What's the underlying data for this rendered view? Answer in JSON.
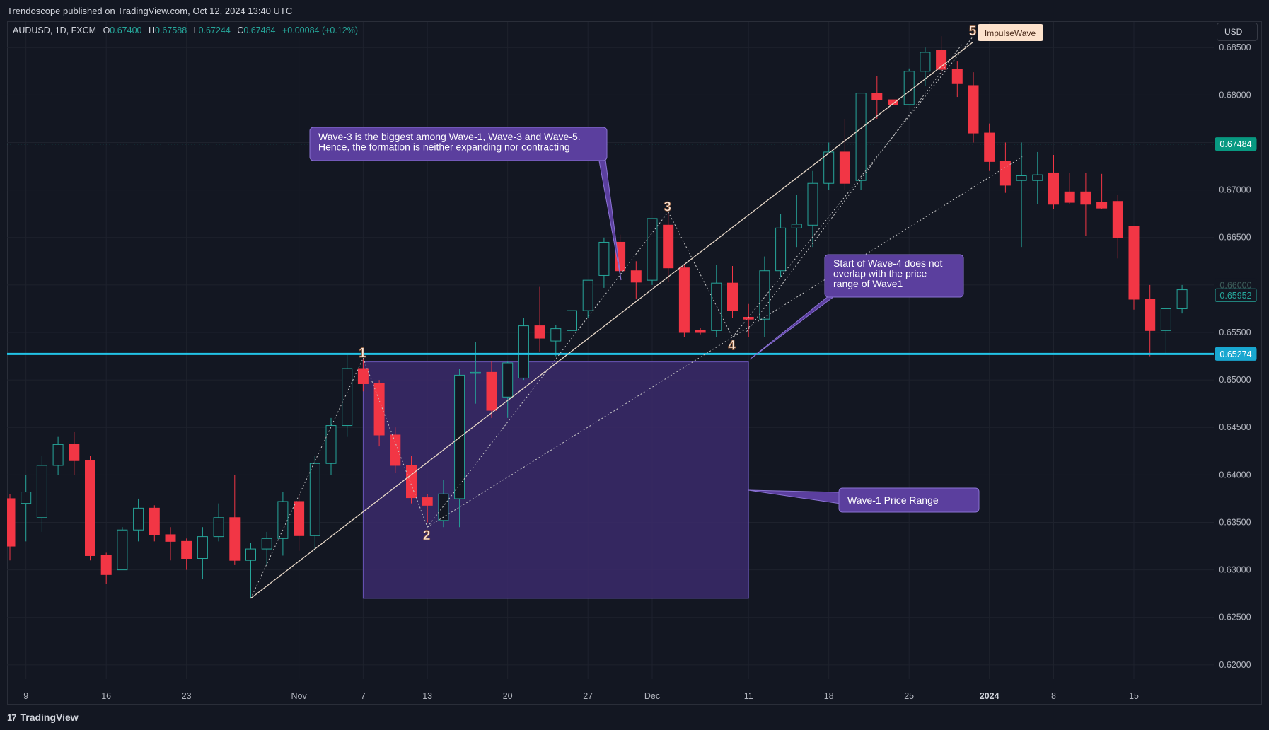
{
  "header": {
    "published": "Trendoscope published on TradingView.com, Oct 12, 2024 13:40 UTC"
  },
  "legend": {
    "symbol": "AUDUSD, 1D, FXCM",
    "o_label": "O",
    "o": "0.67400",
    "h_label": "H",
    "h": "0.67588",
    "l_label": "L",
    "l": "0.67244",
    "c_label": "C",
    "c": "0.67484",
    "change": "+0.00084 (+0.12%)"
  },
  "currency_button": "USD",
  "footer": {
    "brand": "TradingView",
    "brand_mark": "17"
  },
  "colors": {
    "background": "#131722",
    "up": "#26a69a",
    "down": "#f23645",
    "support_line": "#22c3e6",
    "current_price": "#089981",
    "annotation_bg": "#5b3f9e",
    "box_fill": "#3b2a6b"
  },
  "chart_data": {
    "type": "candlestick",
    "ylim": [
      0.6185,
      0.6877
    ],
    "yticks": [
      "0.68500",
      "0.68000",
      "0.67500",
      "0.67000",
      "0.66500",
      "0.66000",
      "0.65500",
      "0.65000",
      "0.64500",
      "0.64000",
      "0.63500",
      "0.63000",
      "0.62500",
      "0.62000"
    ],
    "xticks": [
      {
        "label": "9",
        "index": 1
      },
      {
        "label": "16",
        "index": 6
      },
      {
        "label": "23",
        "index": 11
      },
      {
        "label": "Nov",
        "index": 18
      },
      {
        "label": "7",
        "index": 22
      },
      {
        "label": "13",
        "index": 26
      },
      {
        "label": "20",
        "index": 31
      },
      {
        "label": "27",
        "index": 36
      },
      {
        "label": "Dec",
        "index": 40
      },
      {
        "label": "11",
        "index": 46
      },
      {
        "label": "18",
        "index": 51
      },
      {
        "label": "25",
        "index": 56
      },
      {
        "label": "2024",
        "index": 61
      },
      {
        "label": "8",
        "index": 65
      },
      {
        "label": "15",
        "index": 70
      }
    ],
    "candles": [
      [
        0.6375,
        0.638,
        0.631,
        0.6325
      ],
      [
        0.637,
        0.64,
        0.633,
        0.6382
      ],
      [
        0.6355,
        0.642,
        0.634,
        0.641
      ],
      [
        0.641,
        0.644,
        0.64,
        0.6432
      ],
      [
        0.6432,
        0.6445,
        0.64,
        0.6415
      ],
      [
        0.6415,
        0.642,
        0.631,
        0.6315
      ],
      [
        0.6315,
        0.6318,
        0.6285,
        0.6295
      ],
      [
        0.63,
        0.6345,
        0.63,
        0.6342
      ],
      [
        0.6342,
        0.6375,
        0.633,
        0.6365
      ],
      [
        0.6365,
        0.6368,
        0.633,
        0.6337
      ],
      [
        0.6337,
        0.6345,
        0.631,
        0.633
      ],
      [
        0.633,
        0.6333,
        0.63,
        0.6312
      ],
      [
        0.6312,
        0.6345,
        0.629,
        0.6335
      ],
      [
        0.6335,
        0.637,
        0.633,
        0.6355
      ],
      [
        0.6355,
        0.64,
        0.6305,
        0.631
      ],
      [
        0.631,
        0.6328,
        0.627,
        0.6322
      ],
      [
        0.6322,
        0.634,
        0.6305,
        0.6333
      ],
      [
        0.6333,
        0.6382,
        0.6315,
        0.6372
      ],
      [
        0.6372,
        0.638,
        0.632,
        0.6336
      ],
      [
        0.6336,
        0.642,
        0.632,
        0.6412
      ],
      [
        0.6412,
        0.646,
        0.64,
        0.6452
      ],
      [
        0.6452,
        0.6528,
        0.644,
        0.6512
      ],
      [
        0.6512,
        0.6522,
        0.6488,
        0.6496
      ],
      [
        0.6496,
        0.65,
        0.643,
        0.6442
      ],
      [
        0.6442,
        0.645,
        0.6402,
        0.641
      ],
      [
        0.641,
        0.642,
        0.637,
        0.6376
      ],
      [
        0.6376,
        0.638,
        0.635,
        0.6368
      ],
      [
        0.6352,
        0.6395,
        0.6345,
        0.638
      ],
      [
        0.6375,
        0.6512,
        0.6345,
        0.6505
      ],
      [
        0.6507,
        0.654,
        0.6475,
        0.6508
      ],
      [
        0.6508,
        0.652,
        0.646,
        0.6468
      ],
      [
        0.6482,
        0.652,
        0.646,
        0.6518
      ],
      [
        0.6502,
        0.6565,
        0.65,
        0.6557
      ],
      [
        0.6557,
        0.6598,
        0.653,
        0.6544
      ],
      [
        0.6541,
        0.6558,
        0.6525,
        0.6554
      ],
      [
        0.6552,
        0.6593,
        0.655,
        0.6573
      ],
      [
        0.6573,
        0.6605,
        0.6565,
        0.6605
      ],
      [
        0.661,
        0.665,
        0.6597,
        0.6645
      ],
      [
        0.6645,
        0.6653,
        0.6605,
        0.6615
      ],
      [
        0.6615,
        0.6625,
        0.6585,
        0.6603
      ],
      [
        0.6605,
        0.667,
        0.66,
        0.667
      ],
      [
        0.6663,
        0.6677,
        0.6603,
        0.6618
      ],
      [
        0.6618,
        0.6622,
        0.6545,
        0.655
      ],
      [
        0.6552,
        0.6555,
        0.6548,
        0.655
      ],
      [
        0.6552,
        0.6621,
        0.6545,
        0.6602
      ],
      [
        0.6602,
        0.662,
        0.6565,
        0.6573
      ],
      [
        0.6566,
        0.658,
        0.6545,
        0.6564
      ],
      [
        0.6564,
        0.663,
        0.6545,
        0.6615
      ],
      [
        0.6615,
        0.6675,
        0.6608,
        0.666
      ],
      [
        0.666,
        0.6695,
        0.664,
        0.6664
      ],
      [
        0.6663,
        0.672,
        0.664,
        0.6707
      ],
      [
        0.6707,
        0.675,
        0.67,
        0.674
      ],
      [
        0.674,
        0.6775,
        0.67,
        0.6707
      ],
      [
        0.671,
        0.68,
        0.67,
        0.6802
      ],
      [
        0.6802,
        0.682,
        0.6775,
        0.6795
      ],
      [
        0.6795,
        0.6835,
        0.6785,
        0.679
      ],
      [
        0.679,
        0.6828,
        0.679,
        0.6825
      ],
      [
        0.6825,
        0.685,
        0.681,
        0.6845
      ],
      [
        0.6847,
        0.6862,
        0.6822,
        0.6827
      ],
      [
        0.6827,
        0.6836,
        0.6798,
        0.6812
      ],
      [
        0.681,
        0.6824,
        0.675,
        0.676
      ],
      [
        0.676,
        0.677,
        0.672,
        0.673
      ],
      [
        0.673,
        0.675,
        0.6697,
        0.6705
      ],
      [
        0.671,
        0.675,
        0.664,
        0.6715
      ],
      [
        0.671,
        0.674,
        0.6685,
        0.6716
      ],
      [
        0.6718,
        0.6737,
        0.668,
        0.6685
      ],
      [
        0.6698,
        0.6718,
        0.6685,
        0.6687
      ],
      [
        0.6698,
        0.6718,
        0.6652,
        0.6685
      ],
      [
        0.6687,
        0.6717,
        0.668,
        0.6681
      ],
      [
        0.6688,
        0.6695,
        0.6628,
        0.665
      ],
      [
        0.6662,
        0.666,
        0.6574,
        0.6585
      ],
      [
        0.6585,
        0.66,
        0.6525,
        0.6552
      ],
      [
        0.6552,
        0.6575,
        0.6528,
        0.6575
      ],
      [
        0.6575,
        0.66,
        0.657,
        0.6595
      ]
    ],
    "current_price": {
      "value": 0.67484,
      "label": "0.67484"
    },
    "support_level": {
      "value": 0.65274,
      "label": "0.65274"
    },
    "faded_price": {
      "value": 0.66,
      "label": "0.66000"
    },
    "last_marker": {
      "value": 0.65952,
      "label": "0.65952"
    },
    "waves": [
      {
        "label": "1",
        "index": 22,
        "price": 0.6523
      },
      {
        "label": "2",
        "index": 26,
        "price": 0.6345
      },
      {
        "label": "3",
        "index": 41,
        "price": 0.6677
      },
      {
        "label": "4",
        "index": 45,
        "price": 0.6545
      },
      {
        "label": "5",
        "index": 60,
        "price": 0.6862
      }
    ],
    "wave_start": {
      "index": 15,
      "price": 0.627
    },
    "wave1_price_range": {
      "from_index": 22,
      "to_index": 46,
      "high": 0.6519,
      "low": 0.627
    },
    "indicator_label": "ImpulseWave",
    "annotations": [
      {
        "id": "wave3",
        "lines": [
          "Wave-3 is the biggest among Wave-1, Wave-3 and Wave-5.",
          "Hence, the formation is neither expanding nor contracting"
        ]
      },
      {
        "id": "wave4",
        "lines": [
          "Start of Wave-4 does not",
          "overlap with the price",
          "range of Wave1"
        ]
      },
      {
        "id": "range",
        "lines": [
          "Wave-1 Price Range"
        ]
      }
    ]
  }
}
